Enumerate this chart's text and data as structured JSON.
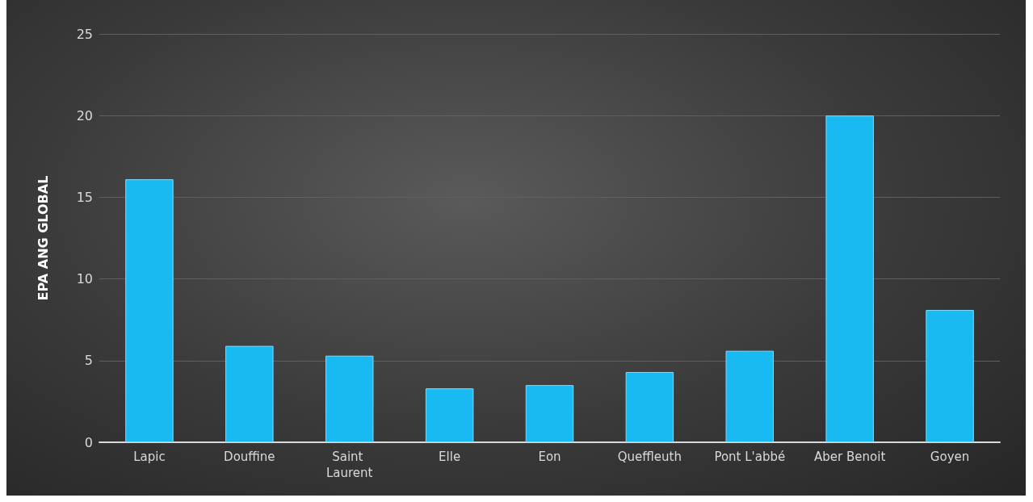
{
  "chart_data": {
    "type": "bar",
    "ylabel": "EPA ANG GLOBAL",
    "categories": [
      "Lapic",
      "Douffine",
      "Saint Laurent",
      "Elle",
      "Eon",
      "Queffleuth",
      "Pont L'abbé",
      "Aber Benoit",
      "Goyen"
    ],
    "values": [
      16.1,
      5.9,
      5.3,
      3.3,
      3.5,
      4.3,
      5.6,
      20.0,
      8.1
    ],
    "color": "#19b9f2",
    "ylim": [
      0,
      25
    ],
    "yticks": [
      0,
      5,
      10,
      15,
      20,
      25
    ],
    "grid": "y"
  }
}
